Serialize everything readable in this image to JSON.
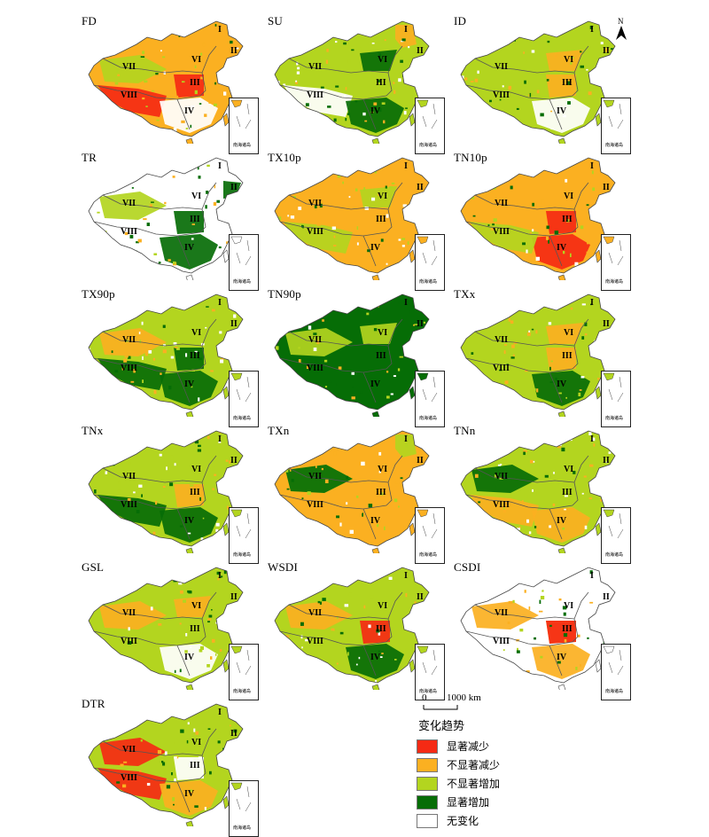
{
  "colors": {
    "sig_decrease": "#f52a14",
    "nonsig_decrease": "#fbb021",
    "nonsig_increase": "#b3d51f",
    "sig_increase": "#066d06",
    "no_change": "#ffffff"
  },
  "region_labels": [
    "I",
    "II",
    "III",
    "IV",
    "VI",
    "VII",
    "VIII"
  ],
  "inset_label": "南海诸岛",
  "north_label": "N",
  "scale": {
    "zero": "0",
    "end": "1000 km"
  },
  "legend": {
    "title": "变化趋势",
    "items": [
      {
        "label": "显著减少",
        "class": "sig_decrease"
      },
      {
        "label": "不显著减少",
        "class": "nonsig_decrease"
      },
      {
        "label": "不显著增加",
        "class": "nonsig_increase"
      },
      {
        "label": "显著增加",
        "class": "sig_increase"
      },
      {
        "label": "无变化",
        "class": "no_change"
      }
    ]
  },
  "panels": [
    {
      "name": "FD",
      "base": "nonsig_decrease",
      "patches": [
        [
          "sig_decrease",
          "VIII"
        ],
        [
          "sig_decrease",
          "III"
        ],
        [
          "nonsig_increase",
          "VII"
        ],
        [
          "no_change",
          "IV"
        ]
      ]
    },
    {
      "name": "SU",
      "base": "nonsig_increase",
      "patches": [
        [
          "no_change",
          "VIII"
        ],
        [
          "nonsig_decrease",
          "I"
        ],
        [
          "sig_increase",
          "IV"
        ],
        [
          "sig_increase",
          "VI"
        ]
      ]
    },
    {
      "name": "ID",
      "base": "nonsig_increase",
      "patches": [
        [
          "no_change",
          "IV"
        ],
        [
          "nonsig_decrease",
          "VI"
        ],
        [
          "nonsig_decrease",
          "III"
        ]
      ]
    },
    {
      "name": "TR",
      "base": "no_change",
      "patches": [
        [
          "sig_increase",
          "III"
        ],
        [
          "sig_increase",
          "IV"
        ],
        [
          "nonsig_increase",
          "VII"
        ],
        [
          "sig_increase",
          "II"
        ]
      ]
    },
    {
      "name": "TX10p",
      "base": "nonsig_decrease",
      "patches": [
        [
          "nonsig_increase",
          "VIII"
        ],
        [
          "nonsig_increase",
          "VI"
        ]
      ]
    },
    {
      "name": "TN10p",
      "base": "nonsig_decrease",
      "patches": [
        [
          "sig_decrease",
          "III"
        ],
        [
          "sig_decrease",
          "IV"
        ],
        [
          "nonsig_increase",
          "VIII"
        ]
      ]
    },
    {
      "name": "TX90p",
      "base": "nonsig_increase",
      "patches": [
        [
          "sig_increase",
          "IV"
        ],
        [
          "sig_increase",
          "VIII"
        ],
        [
          "sig_increase",
          "III"
        ],
        [
          "nonsig_decrease",
          "VII"
        ]
      ]
    },
    {
      "name": "TN90p",
      "base": "sig_increase",
      "patches": [
        [
          "nonsig_increase",
          "VII"
        ],
        [
          "nonsig_increase",
          "VI"
        ]
      ]
    },
    {
      "name": "TXx",
      "base": "nonsig_increase",
      "patches": [
        [
          "nonsig_decrease",
          "III"
        ],
        [
          "nonsig_decrease",
          "VI"
        ],
        [
          "sig_increase",
          "IV"
        ]
      ]
    },
    {
      "name": "TNx",
      "base": "nonsig_increase",
      "patches": [
        [
          "sig_increase",
          "VIII"
        ],
        [
          "sig_increase",
          "IV"
        ],
        [
          "nonsig_decrease",
          "III"
        ]
      ]
    },
    {
      "name": "TXn",
      "base": "nonsig_decrease",
      "patches": [
        [
          "nonsig_increase",
          "VII"
        ],
        [
          "sig_increase",
          "VII"
        ],
        [
          "nonsig_increase",
          "I"
        ]
      ]
    },
    {
      "name": "TNn",
      "base": "nonsig_increase",
      "patches": [
        [
          "nonsig_decrease",
          "VIII"
        ],
        [
          "nonsig_decrease",
          "IV"
        ],
        [
          "sig_increase",
          "VII"
        ]
      ]
    },
    {
      "name": "GSL",
      "base": "nonsig_increase",
      "patches": [
        [
          "no_change",
          "IV"
        ],
        [
          "nonsig_decrease",
          "VII"
        ],
        [
          "nonsig_decrease",
          "VI"
        ]
      ]
    },
    {
      "name": "WSDI",
      "base": "nonsig_increase",
      "patches": [
        [
          "sig_increase",
          "IV"
        ],
        [
          "sig_decrease",
          "III"
        ],
        [
          "nonsig_decrease",
          "VII"
        ]
      ]
    },
    {
      "name": "CSDI",
      "base": "no_change",
      "patches": [
        [
          "nonsig_decrease",
          "VII"
        ],
        [
          "nonsig_decrease",
          "IV"
        ],
        [
          "nonsig_decrease",
          "III"
        ],
        [
          "sig_decrease",
          "III"
        ]
      ]
    },
    {
      "name": "DTR",
      "base": "nonsig_increase",
      "patches": [
        [
          "sig_decrease",
          "VIII"
        ],
        [
          "sig_decrease",
          "VII"
        ],
        [
          "nonsig_decrease",
          "IV"
        ],
        [
          "no_change",
          "III"
        ]
      ]
    }
  ]
}
